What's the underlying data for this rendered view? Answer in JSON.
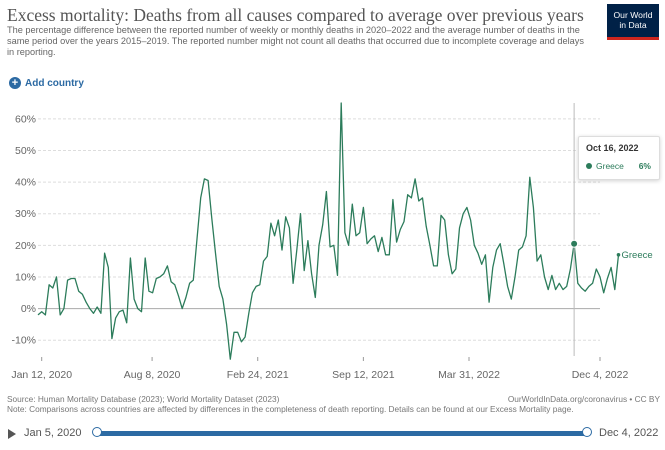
{
  "header": {
    "title": "Excess mortality: Deaths from all causes compared to average over previous years",
    "subtitle": "The percentage difference between the reported number of weekly or monthly deaths in 2020–2022 and the average number of deaths in the same period over the years 2015–2019. The reported number might not count all deaths that occurred due to incomplete coverage and delays in reporting.",
    "logo_line1": "Our World",
    "logo_line2": "in Data",
    "add_country_label": "Add country"
  },
  "tooltip": {
    "date": "Oct 16, 2022",
    "series": "Greece",
    "value": "6%"
  },
  "footer": {
    "source": "Source: Human Mortality Database (2023); World Mortality Dataset (2023)",
    "note": "Note: Comparisons across countries are affected by differences in the completeness of death reporting. Details can be found at our Excess Mortality page.",
    "url": "OurWorldInData.org/coronavirus • CC BY"
  },
  "timeline": {
    "start": "Jan 5, 2020",
    "end": "Dec 4, 2022"
  },
  "colors": {
    "series": "#2c7c5b",
    "accent": "#2c6aa3",
    "grid": "#dddddd"
  },
  "chart_data": {
    "type": "line",
    "title": "Excess mortality: Deaths from all causes compared to average over previous years",
    "ylim": [
      -15,
      65
    ],
    "y_ticks": [
      -10,
      0,
      10,
      20,
      30,
      40,
      50,
      60
    ],
    "y_tick_labels": [
      "-10%",
      "0%",
      "10%",
      "20%",
      "30%",
      "40%",
      "50%",
      "60%"
    ],
    "x_range": [
      "2020-01-05",
      "2022-12-04"
    ],
    "x_ticks": [
      {
        "date": "2020-01-12",
        "label": "Jan 12, 2020"
      },
      {
        "date": "2020-08-08",
        "label": "Aug 8, 2020"
      },
      {
        "date": "2021-02-24",
        "label": "Feb 24, 2021"
      },
      {
        "date": "2021-09-12",
        "label": "Sep 12, 2021"
      },
      {
        "date": "2022-03-31",
        "label": "Mar 31, 2022"
      },
      {
        "date": "2022-12-04",
        "label": "Dec 4, 2022"
      }
    ],
    "series": [
      {
        "name": "Greece",
        "frequency": "weekly",
        "start_date": "2020-01-05",
        "values": [
          -2,
          -1,
          -2,
          7.5,
          6.5,
          10,
          -2,
          0,
          9,
          9.5,
          9.5,
          5.5,
          4.5,
          2,
          0,
          -1.5,
          0.5,
          -1.5,
          17.5,
          13,
          -9.5,
          -3,
          -1,
          -0.5,
          -4.5,
          16,
          3,
          0,
          -1,
          16,
          5.5,
          5,
          9.5,
          10,
          11,
          13.5,
          8.5,
          7.5,
          4,
          0,
          3.5,
          8,
          9,
          22,
          35,
          41,
          40.5,
          28.5,
          17.5,
          7,
          3,
          -5,
          -16,
          -7.5,
          -7.5,
          -10.5,
          -9,
          -1.5,
          5,
          7,
          7.5,
          15,
          16.5,
          27,
          23,
          28,
          18.5,
          29,
          25.5,
          8,
          18.5,
          30,
          12,
          21.5,
          11,
          3.5,
          20,
          26.5,
          37,
          19.5,
          20,
          10.5,
          65,
          24,
          20,
          33,
          23,
          24,
          32,
          20.5,
          22,
          23,
          18,
          22.5,
          17,
          17,
          34.5,
          21,
          25,
          27.5,
          36,
          35,
          41,
          34,
          35,
          26,
          20,
          13.5,
          13.5,
          29.5,
          28,
          17,
          11,
          12.5,
          25.5,
          30,
          32,
          28,
          20,
          17.5,
          14,
          17,
          2,
          13,
          18.5,
          20.5,
          14,
          7,
          3,
          10,
          18.5,
          19.5,
          23,
          41.5,
          32,
          15,
          17,
          10,
          6,
          10.5,
          6,
          8,
          6,
          7,
          12.5,
          20.5,
          8,
          6.5,
          5.5,
          7,
          8,
          12.5,
          10,
          5,
          9.5,
          13,
          6,
          17
        ]
      }
    ]
  }
}
